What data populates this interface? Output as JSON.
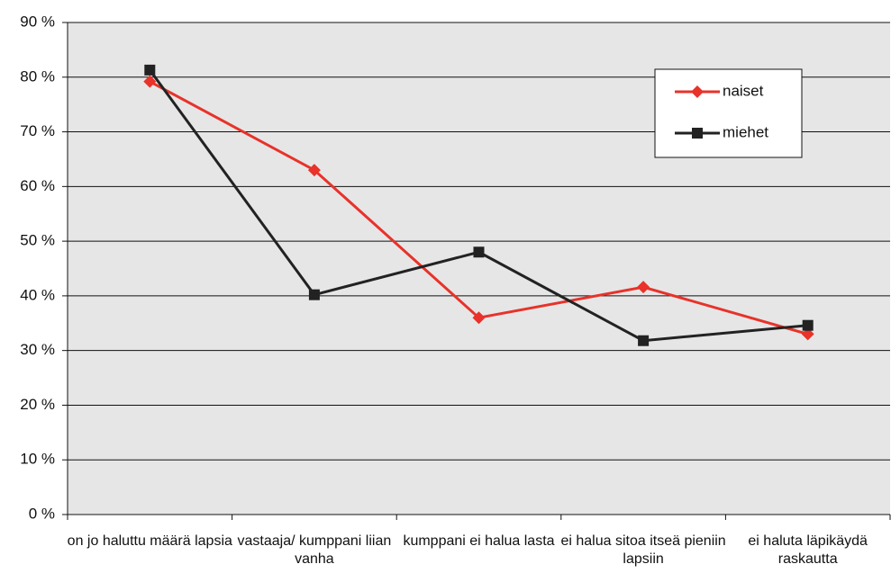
{
  "chart_data": {
    "type": "line",
    "categories": [
      "on jo haluttu määrä lapsia",
      "vastaaja/ kumppani liian vanha",
      "kumppani ei halua lasta",
      "ei halua sitoa itseä pieniin lapsiin",
      "ei haluta läpikäydä raskautta"
    ],
    "series": [
      {
        "name": "naiset",
        "color": "#e8322a",
        "marker": "diamond",
        "values": [
          79.2,
          63,
          36,
          41.6,
          33
        ]
      },
      {
        "name": "miehet",
        "color": "#222222",
        "marker": "square",
        "values": [
          81.3,
          40.2,
          48,
          31.8,
          34.6
        ]
      }
    ],
    "ylim": [
      0,
      90
    ],
    "yticks": [
      {
        "value": 0,
        "label": "0 %"
      },
      {
        "value": 10,
        "label": "10 %"
      },
      {
        "value": 20,
        "label": "20 %"
      },
      {
        "value": 30,
        "label": "30 %"
      },
      {
        "value": 40,
        "label": "40 %"
      },
      {
        "value": 50,
        "label": "50 %"
      },
      {
        "value": 60,
        "label": "60 %"
      },
      {
        "value": 70,
        "label": "70 %"
      },
      {
        "value": 80,
        "label": "80 %"
      },
      {
        "value": 90,
        "label": "90 %"
      }
    ],
    "grid": true,
    "legend": "top-right"
  }
}
